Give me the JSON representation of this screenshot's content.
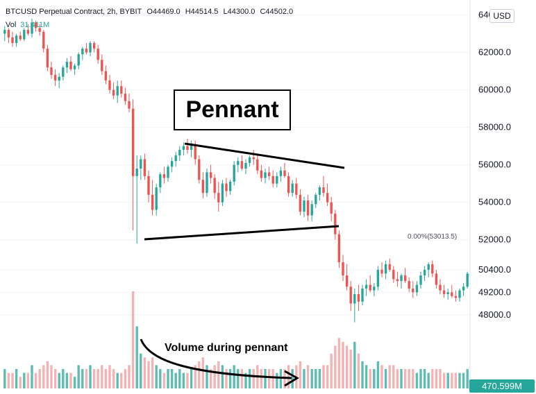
{
  "header": {
    "symbol": "BTCUSD Perpetual Contract, 2h, BYBIT",
    "open": "O44469.0",
    "high": "H44514.5",
    "low": "L44300.0",
    "close": "C44502.0",
    "vol_label": "Vol",
    "vol_value": "31.411M"
  },
  "currency_label": "USD",
  "annotations": {
    "pennant_title": "Pennant",
    "volume_caption": "Volume during pennant",
    "fib_label": "0.00%(53013.5)",
    "volume_badge": "470.599M"
  },
  "colors": {
    "up": "#26a69a",
    "down": "#ef5350",
    "up_vol": "#26a69a",
    "down_vol": "#ef9a9a",
    "grid": "#f0f3fa"
  },
  "chart_data": {
    "type": "candlestick",
    "title": "",
    "y_ticks": [
      "64000.0",
      "62000.0",
      "60000.0",
      "58000.0",
      "56000.0",
      "54000.0",
      "52000.0",
      "50400.0",
      "49200.0",
      "48000.0"
    ],
    "y_tick_values": [
      64000,
      62000,
      60000,
      58000,
      56000,
      54000,
      52000,
      50400,
      49200,
      48000
    ],
    "ylim": [
      47400,
      64500
    ],
    "candles": [
      [
        63000,
        63400,
        62600,
        63200,
        5
      ],
      [
        63200,
        63300,
        62500,
        62800,
        4
      ],
      [
        62800,
        63100,
        62300,
        62500,
        4
      ],
      [
        62500,
        63000,
        62300,
        62900,
        5
      ],
      [
        62900,
        63100,
        62600,
        62700,
        3
      ],
      [
        62700,
        63300,
        62600,
        63200,
        4
      ],
      [
        63200,
        63500,
        62900,
        63000,
        4
      ],
      [
        63000,
        63800,
        62800,
        63600,
        6
      ],
      [
        63600,
        63700,
        63100,
        63300,
        4
      ],
      [
        63300,
        63500,
        62900,
        63100,
        5
      ],
      [
        63100,
        63200,
        62000,
        62200,
        6
      ],
      [
        62200,
        62400,
        61000,
        61200,
        7
      ],
      [
        61200,
        61500,
        60600,
        60800,
        6
      ],
      [
        60800,
        61100,
        60200,
        60500,
        5
      ],
      [
        60500,
        60900,
        60100,
        60700,
        4
      ],
      [
        60700,
        61300,
        60500,
        61200,
        5
      ],
      [
        61200,
        61700,
        60900,
        61500,
        4
      ],
      [
        61500,
        61800,
        61000,
        61100,
        4
      ],
      [
        61100,
        61400,
        60800,
        61300,
        3
      ],
      [
        61300,
        62000,
        61100,
        61900,
        6
      ],
      [
        61900,
        62300,
        61600,
        62200,
        5
      ],
      [
        62200,
        62500,
        61900,
        62000,
        5
      ],
      [
        62000,
        62600,
        61800,
        62500,
        6
      ],
      [
        62500,
        62600,
        62000,
        62200,
        5
      ],
      [
        62200,
        62400,
        61400,
        61600,
        5
      ],
      [
        61600,
        61900,
        60800,
        61000,
        6
      ],
      [
        61000,
        61300,
        60300,
        60500,
        5
      ],
      [
        60500,
        60800,
        59800,
        60000,
        6
      ],
      [
        60000,
        60400,
        59500,
        59700,
        5
      ],
      [
        59700,
        60500,
        59300,
        60200,
        4
      ],
      [
        60200,
        60500,
        59600,
        59800,
        4
      ],
      [
        59800,
        60100,
        59200,
        59400,
        5
      ],
      [
        59400,
        59800,
        58800,
        59000,
        6
      ],
      [
        59000,
        59500,
        52500,
        55400,
        25
      ],
      [
        55400,
        56500,
        51800,
        55800,
        16
      ],
      [
        55800,
        56500,
        55200,
        56300,
        9
      ],
      [
        56300,
        56600,
        55200,
        55400,
        8
      ],
      [
        55400,
        55700,
        54000,
        54400,
        7
      ],
      [
        54400,
        55200,
        53300,
        53600,
        8
      ],
      [
        53600,
        55000,
        53300,
        54800,
        6
      ],
      [
        54800,
        55600,
        54500,
        55500,
        5
      ],
      [
        55500,
        55900,
        55000,
        55300,
        4
      ],
      [
        55300,
        56000,
        55100,
        55900,
        5
      ],
      [
        55900,
        56400,
        55600,
        56200,
        5
      ],
      [
        56200,
        56700,
        55900,
        56500,
        4
      ],
      [
        56500,
        57000,
        56200,
        56800,
        5
      ],
      [
        56800,
        57200,
        56500,
        57000,
        4
      ],
      [
        57000,
        57400,
        56600,
        56800,
        4
      ],
      [
        56800,
        57300,
        56400,
        57100,
        5
      ],
      [
        57100,
        57300,
        56000,
        56300,
        6
      ],
      [
        56300,
        56500,
        55000,
        55200,
        7
      ],
      [
        55200,
        55600,
        54200,
        54500,
        8
      ],
      [
        54500,
        55800,
        54300,
        55600,
        6
      ],
      [
        55600,
        56000,
        55000,
        55300,
        5
      ],
      [
        55300,
        55500,
        54200,
        54500,
        6
      ],
      [
        54500,
        55100,
        53500,
        54000,
        7
      ],
      [
        54000,
        55200,
        53800,
        55000,
        6
      ],
      [
        55000,
        55300,
        54300,
        54600,
        5
      ],
      [
        54600,
        55200,
        54400,
        55100,
        5
      ],
      [
        55100,
        56200,
        54900,
        56000,
        6
      ],
      [
        56000,
        56400,
        55600,
        56200,
        5
      ],
      [
        56200,
        56500,
        55700,
        55800,
        5
      ],
      [
        55800,
        56300,
        55500,
        56100,
        4
      ],
      [
        56100,
        56500,
        55900,
        56400,
        5
      ],
      [
        56400,
        56800,
        56000,
        56300,
        5
      ],
      [
        56300,
        56600,
        55500,
        55700,
        6
      ],
      [
        55700,
        56000,
        55100,
        55300,
        5
      ],
      [
        55300,
        55800,
        55000,
        55600,
        5
      ],
      [
        55600,
        55900,
        55200,
        55400,
        5
      ],
      [
        55400,
        55700,
        54800,
        55000,
        5
      ],
      [
        55000,
        55600,
        54800,
        55400,
        4
      ],
      [
        55400,
        55900,
        55100,
        55700,
        5
      ],
      [
        55700,
        56100,
        55300,
        55400,
        5
      ],
      [
        55400,
        55600,
        54300,
        54500,
        6
      ],
      [
        54500,
        55200,
        54300,
        55000,
        5
      ],
      [
        55000,
        55300,
        54200,
        54400,
        6
      ],
      [
        54400,
        54700,
        53300,
        53500,
        7
      ],
      [
        53500,
        54300,
        53200,
        54100,
        5
      ],
      [
        54100,
        54400,
        53000,
        53300,
        6
      ],
      [
        53300,
        54100,
        53000,
        53900,
        5
      ],
      [
        53900,
        54500,
        53700,
        54400,
        5
      ],
      [
        54400,
        54900,
        54100,
        54800,
        5
      ],
      [
        54800,
        55400,
        54300,
        54500,
        6
      ],
      [
        54500,
        55000,
        53800,
        54000,
        6
      ],
      [
        54000,
        54300,
        53000,
        53400,
        9
      ],
      [
        53400,
        53600,
        52000,
        52300,
        11
      ],
      [
        52300,
        52500,
        50500,
        50800,
        13
      ],
      [
        50800,
        51200,
        49800,
        50100,
        12
      ],
      [
        50100,
        50700,
        49300,
        49500,
        11
      ],
      [
        49500,
        49800,
        48200,
        48600,
        10
      ],
      [
        48600,
        49400,
        47600,
        49100,
        12
      ],
      [
        49100,
        49600,
        48200,
        48700,
        9
      ],
      [
        48700,
        49600,
        48500,
        49400,
        7
      ],
      [
        49400,
        49900,
        49000,
        49600,
        6
      ],
      [
        49600,
        50100,
        49200,
        49300,
        5
      ],
      [
        49300,
        49700,
        49000,
        49500,
        5
      ],
      [
        49500,
        50600,
        49300,
        50400,
        7
      ],
      [
        50400,
        50800,
        50000,
        50200,
        6
      ],
      [
        50200,
        50900,
        49900,
        50700,
        5
      ],
      [
        50700,
        51000,
        50300,
        50400,
        6
      ],
      [
        50400,
        50600,
        49700,
        49900,
        6
      ],
      [
        49900,
        50300,
        49500,
        49800,
        5
      ],
      [
        49800,
        50200,
        49400,
        50100,
        5
      ],
      [
        50100,
        50500,
        49700,
        49800,
        5
      ],
      [
        49800,
        50000,
        49200,
        49400,
        5
      ],
      [
        49400,
        49800,
        48900,
        49200,
        5
      ],
      [
        49200,
        49800,
        49000,
        49600,
        4
      ],
      [
        49600,
        50300,
        49400,
        50100,
        5
      ],
      [
        50100,
        50600,
        49800,
        50400,
        5
      ],
      [
        50400,
        50800,
        50000,
        50700,
        4
      ],
      [
        50700,
        50900,
        50000,
        50200,
        5
      ],
      [
        50200,
        50400,
        49400,
        49600,
        5
      ],
      [
        49600,
        49900,
        49100,
        49300,
        5
      ],
      [
        49300,
        49600,
        48900,
        49100,
        4
      ],
      [
        49100,
        49400,
        48800,
        49200,
        4
      ],
      [
        49200,
        49600,
        48900,
        49000,
        4
      ],
      [
        49000,
        49300,
        48700,
        48900,
        4
      ],
      [
        48900,
        49400,
        48700,
        49300,
        4
      ],
      [
        49300,
        49700,
        49000,
        49500,
        4
      ],
      [
        49500,
        50300,
        49400,
        50200,
        5
      ]
    ]
  }
}
